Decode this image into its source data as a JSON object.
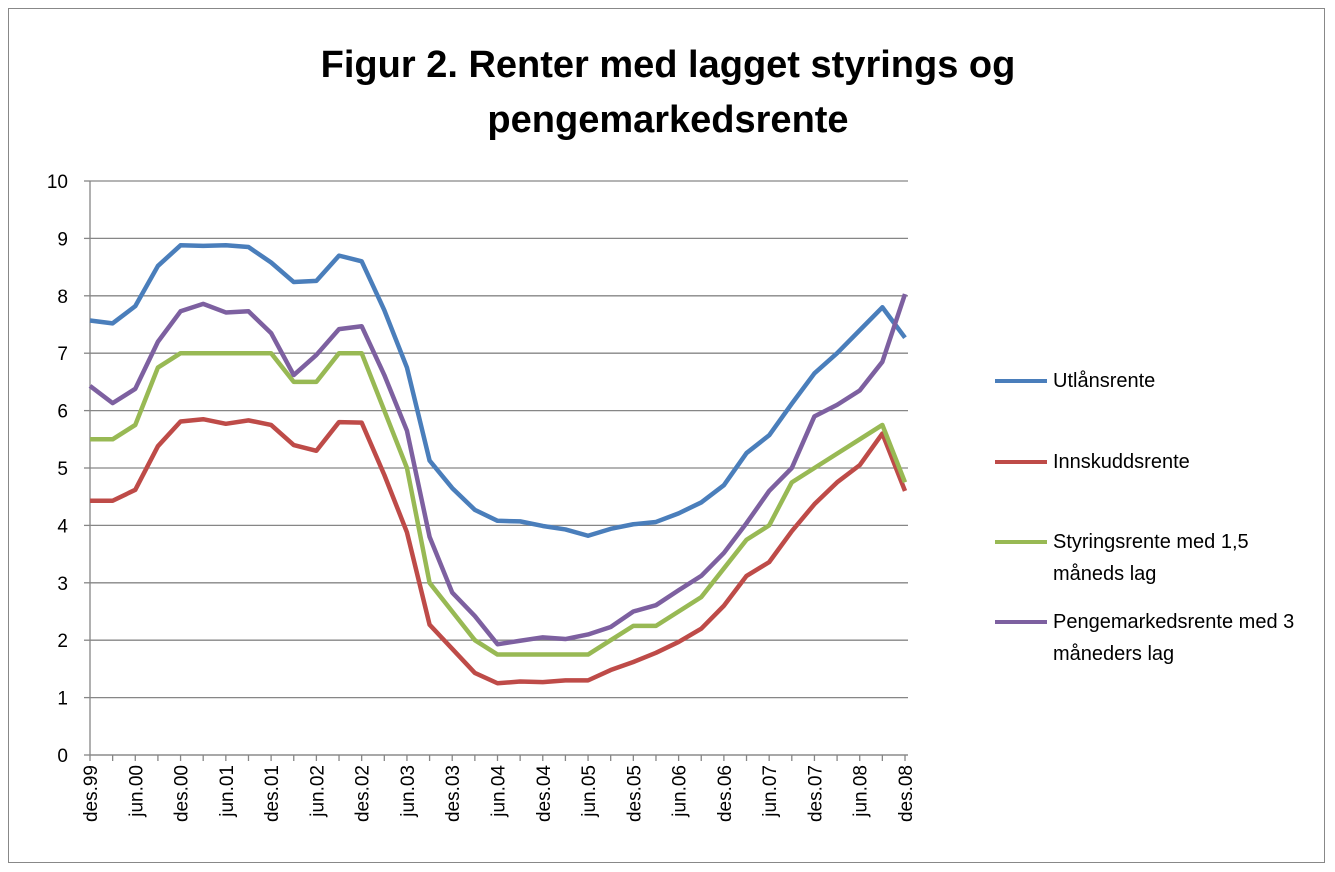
{
  "chart_data": {
    "type": "line",
    "title": "Figur 2. Renter med lagget styrings og pengemarkedsrente",
    "categories": [
      "des.99",
      null,
      "jun.00",
      null,
      "des.00",
      null,
      "jun.01",
      null,
      "des.01",
      null,
      "jun.02",
      null,
      "des.02",
      null,
      "jun.03",
      null,
      "des.03",
      null,
      "jun.04",
      null,
      "des.04",
      null,
      "jun.05",
      null,
      "des.05",
      null,
      "jun.06",
      null,
      "des.06",
      null,
      "jun.07",
      null,
      "des.07",
      null,
      "jun.08",
      null,
      "des.08"
    ],
    "series": [
      {
        "name": "Utlånsrente",
        "color": "#4a7ebb",
        "values": [
          7.57,
          7.52,
          7.82,
          8.52,
          8.88,
          8.87,
          8.88,
          8.85,
          8.58,
          8.24,
          8.26,
          8.7,
          8.6,
          7.75,
          6.75,
          5.13,
          4.65,
          4.27,
          4.08,
          4.07,
          3.99,
          3.93,
          3.82,
          3.94,
          4.02,
          4.06,
          4.21,
          4.4,
          4.7,
          5.26,
          5.57,
          6.12,
          6.65,
          7.0,
          7.4,
          7.8,
          7.27
        ]
      },
      {
        "name": "Innskuddsrente",
        "color": "#be4b48",
        "values": [
          4.43,
          4.43,
          4.62,
          5.38,
          5.81,
          5.85,
          5.77,
          5.83,
          5.75,
          5.4,
          5.3,
          5.8,
          5.79,
          4.88,
          3.88,
          2.27,
          1.85,
          1.43,
          1.25,
          1.28,
          1.27,
          1.3,
          1.3,
          1.48,
          1.62,
          1.78,
          1.97,
          2.2,
          2.6,
          3.12,
          3.36,
          3.9,
          4.37,
          4.75,
          5.05,
          5.6,
          4.6
        ]
      },
      {
        "name": "Styringsrente med 1,5 måneds lag",
        "color": "#98b954",
        "values": [
          5.5,
          5.5,
          5.75,
          6.75,
          7,
          7,
          7,
          7,
          7,
          6.5,
          6.5,
          7,
          7,
          6,
          5,
          3,
          2.5,
          2,
          1.75,
          1.75,
          1.75,
          1.75,
          1.75,
          2,
          2.25,
          2.25,
          2.5,
          2.75,
          3.25,
          3.75,
          4,
          4.75,
          5,
          5.25,
          5.5,
          5.75,
          4.75
        ]
      },
      {
        "name": "Pengemarkedsrente med 3 måneders lag",
        "color": "#7d60a0",
        "values": [
          6.43,
          6.13,
          6.38,
          7.2,
          7.73,
          7.86,
          7.71,
          7.73,
          7.35,
          6.62,
          6.97,
          7.42,
          7.47,
          6.62,
          5.65,
          3.8,
          2.83,
          2.42,
          1.93,
          1.99,
          2.05,
          2.02,
          2.1,
          2.23,
          2.5,
          2.61,
          2.87,
          3.12,
          3.52,
          4.04,
          4.6,
          5.0,
          5.9,
          6.1,
          6.35,
          6.85,
          8.03
        ]
      }
    ],
    "ylim": [
      0,
      10
    ],
    "yticks": [
      0,
      1,
      2,
      3,
      4,
      5,
      6,
      7,
      8,
      9,
      10
    ],
    "grid": true,
    "legend": "right"
  }
}
